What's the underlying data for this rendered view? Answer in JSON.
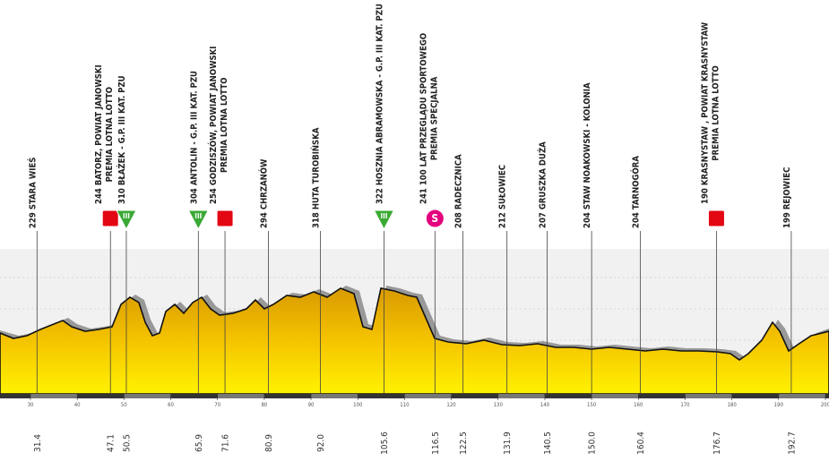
{
  "axis": {
    "xlim": [
      30,
      200
    ],
    "ticks": [
      30,
      40,
      50,
      60,
      70,
      80,
      90,
      100,
      110,
      120,
      130,
      140,
      150,
      160,
      170,
      180,
      190,
      200
    ]
  },
  "waypoints": [
    {
      "km": {
        "value": 31.4,
        "label": "31.4"
      },
      "lines": [
        "229 STARA WIEŚ"
      ]
    },
    {
      "km": {
        "value": 47.1,
        "label": "47.1"
      },
      "lines": [
        "244 BATORZ, POWIAT JANOWSKI",
        "PREMIA LOTNA LOTTO"
      ],
      "icon": "sprint"
    },
    {
      "km": {
        "value": 50.5,
        "label": "50.5"
      },
      "lines": [
        "310 BŁAŻEK - G.P. III KAT. PZU"
      ],
      "icon": "climb",
      "icon_label": "III"
    },
    {
      "km": {
        "value": 65.9,
        "label": "65.9"
      },
      "lines": [
        "304 ANTOLIN - G.P. III KAT. PZU"
      ],
      "icon": "climb",
      "icon_label": "III"
    },
    {
      "km": {
        "value": 71.6,
        "label": "71.6"
      },
      "lines": [
        "254 GODZISZÓW, POWIAT JANOWSKI",
        "PREMIA LOTNA LOTTO"
      ],
      "icon": "sprint"
    },
    {
      "km": {
        "value": 80.9,
        "label": "80.9"
      },
      "lines": [
        "294 CHRZANÓW"
      ]
    },
    {
      "km": {
        "value": 92.0,
        "label": "92.0"
      },
      "lines": [
        "318 HUTA TUROBIŃSKA"
      ]
    },
    {
      "km": {
        "value": 105.6,
        "label": "105.6"
      },
      "lines": [
        "322 HOSZNIA ABRAMOWSKA - G.P. III KAT. PZU"
      ],
      "icon": "climb",
      "icon_label": "III"
    },
    {
      "km": {
        "value": 116.5,
        "label": "116.5"
      },
      "lines": [
        "241 100 LAT PRZEGLĄDU SPORTOWEGO",
        "PREMIA SPECJALNA"
      ],
      "icon": "special",
      "icon_label": "S"
    },
    {
      "km": {
        "value": 122.5,
        "label": "122.5"
      },
      "lines": [
        "208 RADECZNICA"
      ]
    },
    {
      "km": {
        "value": 131.9,
        "label": "131.9"
      },
      "lines": [
        "212 SUŁOWIEC"
      ]
    },
    {
      "km": {
        "value": 140.5,
        "label": "140.5"
      },
      "lines": [
        "207 GRUSZKA DUŻA"
      ]
    },
    {
      "km": {
        "value": 150.0,
        "label": "150.0"
      },
      "lines": [
        "204 STAW NOAKOWSKI - KOLONIA"
      ]
    },
    {
      "km": {
        "value": 160.4,
        "label": "160.4"
      },
      "lines": [
        "204 TARNOGÓRA"
      ]
    },
    {
      "km": {
        "value": 176.7,
        "label": "176.7"
      },
      "lines": [
        "190 KRASNYSTAW , POWIAT KRASNYSTAW",
        "PREMIA LOTNA LOTTO"
      ],
      "icon": "sprint"
    },
    {
      "km": {
        "value": 192.7,
        "label": "192.7"
      },
      "lines": [
        "199 REJOWIEC"
      ]
    }
  ]
}
